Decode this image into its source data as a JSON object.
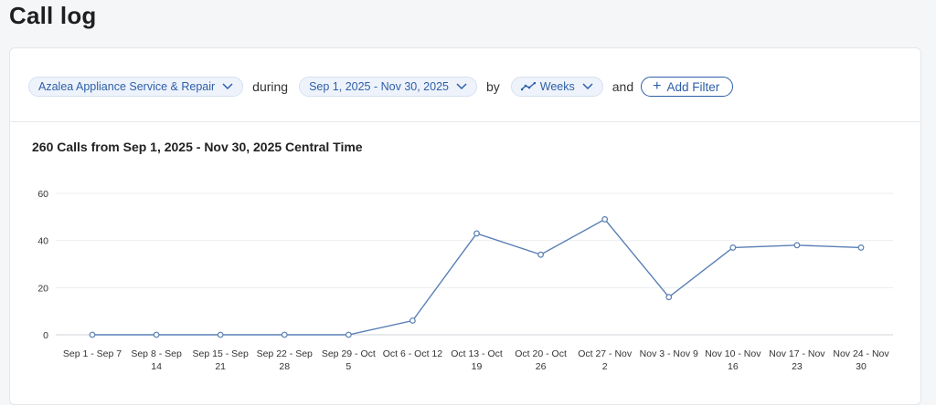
{
  "page": {
    "title": "Call log"
  },
  "filters": {
    "business": "Azalea Appliance Service & Repair",
    "during_label": "during",
    "date_range": "Sep 1, 2025 - Nov 30, 2025",
    "by_label": "by",
    "interval": "Weeks",
    "and_label": "and",
    "add_filter": "Add Filter"
  },
  "chart_header": {
    "title": "260 Calls from Sep 1, 2025 - Nov 30, 2025 Central Time"
  },
  "chart_data": {
    "type": "line",
    "categories": [
      [
        "Sep 1 - Sep 7"
      ],
      [
        "Sep 8 - Sep",
        "14"
      ],
      [
        "Sep 15 - Sep",
        "21"
      ],
      [
        "Sep 22 - Sep",
        "28"
      ],
      [
        "Sep 29 - Oct",
        "5"
      ],
      [
        "Oct 6 - Oct 12"
      ],
      [
        "Oct 13 - Oct",
        "19"
      ],
      [
        "Oct 20 - Oct",
        "26"
      ],
      [
        "Oct 27 - Nov",
        "2"
      ],
      [
        "Nov 3 - Nov 9"
      ],
      [
        "Nov 10 - Nov",
        "16"
      ],
      [
        "Nov 17 - Nov",
        "23"
      ],
      [
        "Nov 24 - Nov",
        "30"
      ]
    ],
    "values": [
      0,
      0,
      0,
      0,
      0,
      6,
      43,
      34,
      49,
      16,
      37,
      38,
      37
    ],
    "ylim": [
      0,
      60
    ],
    "yticks": [
      0,
      20,
      40,
      60
    ],
    "grid": true,
    "line_color": "#5a7fb5"
  }
}
